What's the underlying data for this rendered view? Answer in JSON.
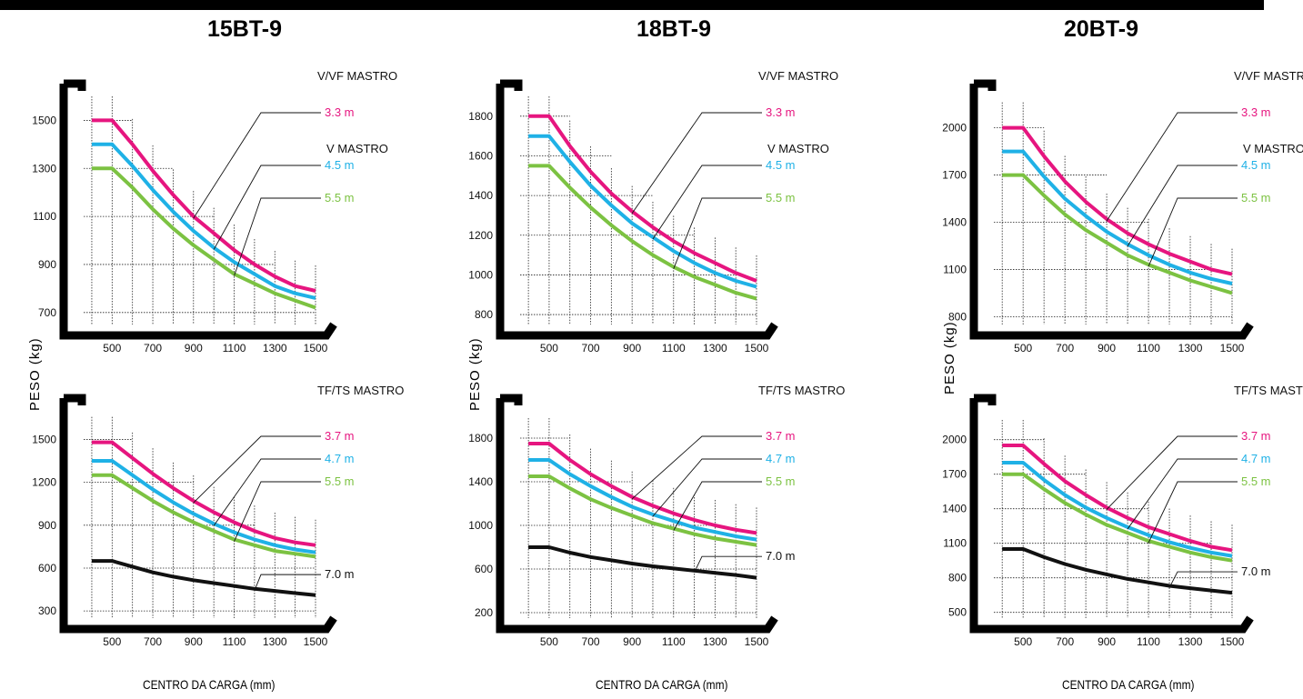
{
  "colors": {
    "magenta": "#e6157f",
    "cyan": "#1fb1e6",
    "green": "#7cc242",
    "black": "#111111"
  },
  "models": [
    {
      "title": "15BT-9",
      "ylabel": "PESO (kg)",
      "xlabel": ""
    },
    {
      "title": "18BT-9",
      "ylabel": "PESO (kg)",
      "xlabel": ""
    },
    {
      "title": "20BT-9",
      "ylabel": "PESO (kg)",
      "xlabel": ""
    }
  ],
  "x_axis_title": "CENTRO DA CARGA (mm)",
  "chart_data": [
    {
      "model": "15BT-9",
      "type": "line",
      "mast_header": "V/VF  MASTRO",
      "mast_header2": "V  MASTRO",
      "x": [
        400,
        500,
        600,
        700,
        800,
        900,
        1000,
        1100,
        1200,
        1300,
        1400,
        1500
      ],
      "xticks": [
        500,
        700,
        900,
        1100,
        1300,
        1500
      ],
      "yticks": [
        700,
        900,
        1100,
        1300,
        1500
      ],
      "ylim": [
        650,
        1600
      ],
      "xlim": [
        360,
        1500
      ],
      "series": [
        {
          "name": "3.3 m",
          "color": "magenta",
          "values": [
            1500,
            1500,
            1400,
            1290,
            1190,
            1100,
            1030,
            960,
            900,
            850,
            810,
            790
          ]
        },
        {
          "name": "4.5 m",
          "color": "cyan",
          "values": [
            1400,
            1400,
            1310,
            1210,
            1120,
            1040,
            970,
            910,
            860,
            810,
            780,
            760
          ]
        },
        {
          "name": "5.5 m",
          "color": "green",
          "values": [
            1300,
            1300,
            1220,
            1130,
            1050,
            980,
            920,
            860,
            820,
            780,
            750,
            720
          ]
        }
      ]
    },
    {
      "model": "15BT-9",
      "type": "line",
      "mast_header": "TF/TS  MASTRO",
      "x": [
        400,
        500,
        600,
        700,
        800,
        900,
        1000,
        1100,
        1200,
        1300,
        1400,
        1500
      ],
      "xticks": [
        500,
        700,
        900,
        1100,
        1300,
        1500
      ],
      "yticks": [
        300,
        600,
        900,
        1200,
        1500
      ],
      "ylim": [
        250,
        1700
      ],
      "xlim": [
        360,
        1500
      ],
      "series": [
        {
          "name": "3.7 m",
          "color": "magenta",
          "values": [
            1480,
            1480,
            1370,
            1260,
            1160,
            1070,
            990,
            920,
            860,
            810,
            780,
            760
          ]
        },
        {
          "name": "4.7 m",
          "color": "cyan",
          "values": [
            1350,
            1350,
            1250,
            1150,
            1060,
            980,
            910,
            850,
            800,
            760,
            730,
            710
          ]
        },
        {
          "name": "5.5 m",
          "color": "green",
          "values": [
            1250,
            1250,
            1160,
            1070,
            990,
            920,
            860,
            800,
            760,
            720,
            700,
            680
          ]
        },
        {
          "name": "7.0 m",
          "color": "black",
          "values": [
            650,
            650,
            610,
            570,
            540,
            515,
            495,
            475,
            455,
            440,
            425,
            410
          ]
        }
      ]
    },
    {
      "model": "18BT-9",
      "type": "line",
      "mast_header": "V/VF  MASTRO",
      "mast_header2": "V  MASTRO",
      "x": [
        400,
        500,
        600,
        700,
        800,
        900,
        1000,
        1100,
        1200,
        1300,
        1400,
        1500
      ],
      "xticks": [
        500,
        700,
        900,
        1100,
        1300,
        1500
      ],
      "yticks": [
        800,
        1000,
        1200,
        1400,
        1600,
        1800
      ],
      "ylim": [
        750,
        1900
      ],
      "xlim": [
        360,
        1500
      ],
      "series": [
        {
          "name": "3.3 m",
          "color": "magenta",
          "values": [
            1800,
            1800,
            1650,
            1520,
            1410,
            1320,
            1240,
            1170,
            1110,
            1060,
            1010,
            970
          ]
        },
        {
          "name": "4.5 m",
          "color": "cyan",
          "values": [
            1700,
            1700,
            1570,
            1450,
            1350,
            1260,
            1190,
            1120,
            1060,
            1010,
            970,
            940
          ]
        },
        {
          "name": "5.5 m",
          "color": "green",
          "values": [
            1550,
            1550,
            1440,
            1340,
            1250,
            1170,
            1100,
            1040,
            990,
            950,
            910,
            880
          ]
        }
      ]
    },
    {
      "model": "18BT-9",
      "type": "line",
      "mast_header": "TF/TS  MASTRO",
      "x": [
        400,
        500,
        600,
        700,
        800,
        900,
        1000,
        1100,
        1200,
        1300,
        1400,
        1500
      ],
      "xticks": [
        500,
        700,
        900,
        1100,
        1300,
        1500
      ],
      "yticks": [
        200,
        600,
        1000,
        1400,
        1800
      ],
      "ylim": [
        150,
        2050
      ],
      "xlim": [
        360,
        1500
      ],
      "series": [
        {
          "name": "3.7 m",
          "color": "magenta",
          "values": [
            1750,
            1750,
            1600,
            1470,
            1360,
            1260,
            1180,
            1110,
            1050,
            1000,
            960,
            930
          ]
        },
        {
          "name": "4.7 m",
          "color": "cyan",
          "values": [
            1600,
            1600,
            1470,
            1360,
            1260,
            1170,
            1100,
            1040,
            980,
            940,
            900,
            870
          ]
        },
        {
          "name": "5.5 m",
          "color": "green",
          "values": [
            1450,
            1450,
            1340,
            1240,
            1160,
            1090,
            1020,
            970,
            920,
            880,
            850,
            820
          ]
        },
        {
          "name": "7.0 m",
          "color": "black",
          "values": [
            800,
            800,
            750,
            710,
            680,
            650,
            625,
            605,
            585,
            565,
            545,
            520
          ]
        }
      ]
    },
    {
      "model": "20BT-9",
      "type": "line",
      "mast_header": "V/VF  MASTRO",
      "mast_header2": "V  MASTRO",
      "x": [
        400,
        500,
        600,
        700,
        800,
        900,
        1000,
        1100,
        1200,
        1300,
        1400,
        1500
      ],
      "xticks": [
        500,
        700,
        900,
        1100,
        1300,
        1500
      ],
      "yticks": [
        800,
        1100,
        1400,
        1700,
        2000
      ],
      "ylim": [
        750,
        2200
      ],
      "xlim": [
        360,
        1500
      ],
      "series": [
        {
          "name": "3.3 m",
          "color": "magenta",
          "values": [
            2000,
            2000,
            1820,
            1660,
            1530,
            1420,
            1330,
            1260,
            1200,
            1150,
            1100,
            1070
          ]
        },
        {
          "name": "4.5 m",
          "color": "cyan",
          "values": [
            1850,
            1850,
            1690,
            1550,
            1440,
            1340,
            1260,
            1190,
            1130,
            1080,
            1040,
            1010
          ]
        },
        {
          "name": "5.5 m",
          "color": "green",
          "values": [
            1700,
            1700,
            1570,
            1450,
            1350,
            1270,
            1190,
            1130,
            1080,
            1030,
            990,
            950
          ]
        }
      ]
    },
    {
      "model": "20BT-9",
      "type": "line",
      "mast_header": "TF/TS  MASTRO",
      "x": [
        400,
        500,
        600,
        700,
        800,
        900,
        1000,
        1100,
        1200,
        1300,
        1400,
        1500
      ],
      "xticks": [
        500,
        700,
        900,
        1100,
        1300,
        1500
      ],
      "yticks": [
        500,
        800,
        1100,
        1400,
        1700,
        2000
      ],
      "ylim": [
        450,
        2250
      ],
      "xlim": [
        360,
        1500
      ],
      "series": [
        {
          "name": "3.7 m",
          "color": "magenta",
          "values": [
            1950,
            1950,
            1790,
            1640,
            1520,
            1410,
            1320,
            1240,
            1180,
            1120,
            1070,
            1040
          ]
        },
        {
          "name": "4.7 m",
          "color": "cyan",
          "values": [
            1800,
            1800,
            1650,
            1520,
            1410,
            1320,
            1240,
            1170,
            1110,
            1060,
            1020,
            990
          ]
        },
        {
          "name": "5.5 m",
          "color": "green",
          "values": [
            1700,
            1700,
            1570,
            1450,
            1350,
            1260,
            1190,
            1120,
            1070,
            1020,
            980,
            950
          ]
        },
        {
          "name": "7.0 m",
          "color": "black",
          "values": [
            1050,
            1050,
            980,
            920,
            870,
            830,
            790,
            760,
            730,
            710,
            690,
            670
          ]
        }
      ]
    }
  ]
}
